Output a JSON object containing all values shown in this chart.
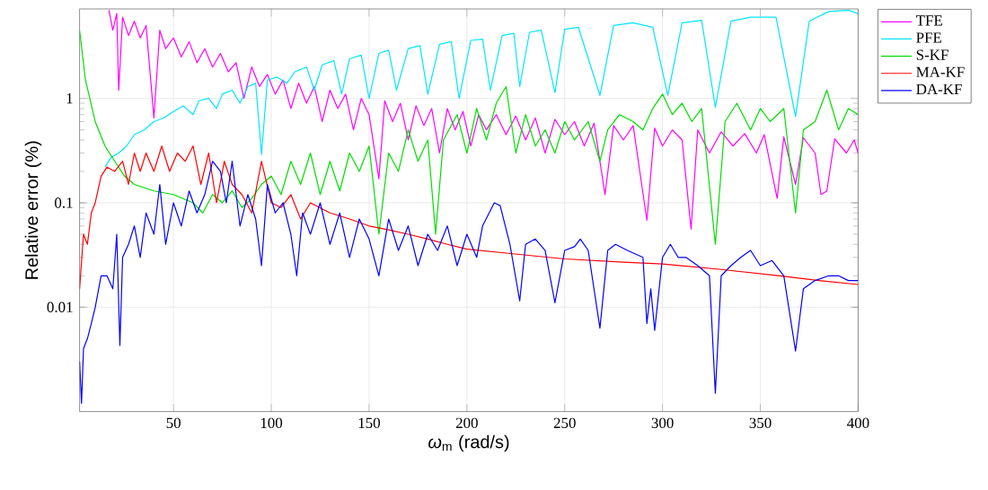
{
  "chart_data": {
    "type": "line",
    "xlabel": "*ω*$_{m}$ (rad/s)",
    "ylabel": "Relative error (%)",
    "xlim": [
      2,
      400
    ],
    "ylim": [
      0.001,
      7.2
    ],
    "xticks": [
      50,
      100,
      150,
      200,
      250,
      300,
      350,
      400
    ],
    "yticks": [
      0.01,
      0.1,
      1
    ],
    "log": "y",
    "grid": true,
    "legend": "right",
    "marker": "none",
    "line_style": "solid",
    "series": [
      {
        "name": "TFE",
        "color": "#ff00ff",
        "x": [
          17,
          19,
          21,
          22,
          24,
          27,
          30,
          33,
          36,
          40,
          43,
          46,
          50,
          54,
          58,
          62,
          66,
          70,
          74,
          78,
          82,
          86,
          90,
          94,
          98,
          102,
          106,
          110,
          114,
          118,
          122,
          126,
          130,
          134,
          138,
          142,
          146,
          150,
          155,
          158,
          162,
          166,
          170,
          174,
          178,
          182,
          186,
          190,
          194,
          198,
          202,
          206,
          210,
          215,
          220,
          225,
          230,
          235,
          240,
          245,
          250,
          255,
          260,
          265,
          270.6,
          275,
          280,
          285,
          292,
          296,
          300,
          305,
          310,
          314.6,
          318,
          324,
          330,
          336,
          342,
          348,
          352,
          358.6,
          362,
          368,
          372,
          378,
          381,
          384,
          388,
          394,
          398,
          400
        ],
        "values": [
          7.0,
          4.5,
          6.5,
          1.2,
          6.0,
          4.0,
          5.5,
          3.8,
          5.0,
          0.65,
          4.5,
          3.0,
          3.8,
          2.5,
          3.5,
          2.2,
          3.0,
          2.0,
          2.7,
          1.8,
          2.2,
          1.0,
          2.0,
          1.3,
          1.7,
          1.1,
          1.5,
          0.8,
          1.4,
          0.9,
          1.3,
          0.6,
          1.2,
          0.8,
          1.1,
          0.5,
          1.0,
          0.7,
          0.17,
          0.95,
          0.6,
          0.9,
          0.4,
          0.85,
          0.55,
          0.8,
          0.3,
          0.8,
          0.5,
          0.75,
          0.35,
          0.7,
          0.5,
          0.7,
          0.45,
          0.68,
          0.4,
          0.65,
          0.3,
          0.63,
          0.45,
          0.6,
          0.35,
          0.58,
          0.12,
          0.55,
          0.4,
          0.55,
          0.068,
          0.52,
          0.35,
          0.5,
          0.4,
          0.056,
          0.5,
          0.3,
          0.48,
          0.35,
          0.46,
          0.3,
          0.45,
          0.11,
          0.43,
          0.15,
          0.42,
          0.3,
          0.12,
          0.13,
          0.41,
          0.3,
          0.4,
          0.3
        ]
      },
      {
        "name": "PFE",
        "color": "#00e5ff",
        "x": [
          15,
          18,
          22,
          26,
          30,
          35,
          40,
          45,
          50,
          55,
          60,
          63,
          68,
          72,
          75,
          80,
          84,
          88,
          92,
          95,
          98,
          103,
          108,
          112,
          118,
          122,
          126,
          132,
          136,
          140,
          146,
          150,
          155,
          160,
          164,
          170,
          176,
          180,
          186,
          192,
          196,
          202,
          208,
          212,
          218,
          224,
          227,
          232,
          238,
          245,
          250,
          257,
          268,
          275,
          285,
          295,
          302.7,
          310,
          320,
          327,
          335,
          345,
          358,
          368,
          375,
          385,
          395,
          400
        ],
        "values": [
          0.22,
          0.27,
          0.3,
          0.35,
          0.45,
          0.5,
          0.6,
          0.65,
          0.75,
          0.85,
          0.7,
          0.95,
          1.0,
          0.8,
          1.1,
          1.2,
          0.9,
          1.3,
          1.4,
          0.29,
          1.5,
          1.6,
          1.4,
          1.8,
          2.0,
          1.2,
          2.1,
          2.3,
          1.1,
          2.4,
          2.6,
          1.0,
          2.7,
          2.9,
          1.2,
          3.0,
          3.2,
          1.1,
          3.3,
          3.5,
          1.0,
          3.6,
          3.7,
          1.2,
          4.0,
          4.2,
          1.3,
          4.3,
          4.5,
          1.14,
          4.6,
          4.8,
          1.07,
          5.0,
          5.3,
          4.8,
          1.07,
          5.3,
          5.6,
          0.82,
          5.5,
          6.0,
          6.0,
          0.67,
          5.5,
          6.8,
          7.0,
          6.5
        ]
      },
      {
        "name": "S-KF",
        "color": "#00dd00",
        "x": [
          2,
          5,
          10,
          15,
          20,
          25,
          30,
          40,
          50,
          60,
          65,
          70,
          75,
          80,
          85,
          90,
          95,
          100,
          105,
          110,
          115,
          120,
          125,
          130,
          135,
          140,
          145,
          150,
          155,
          160,
          165,
          170,
          175,
          180,
          184,
          188,
          195,
          200,
          205,
          210,
          215,
          220,
          225,
          230,
          235,
          240,
          245,
          250,
          255,
          262,
          268,
          272,
          278,
          285,
          290,
          295,
          300,
          305,
          310,
          315,
          320,
          327,
          332,
          338,
          345,
          350,
          355,
          362,
          368,
          372,
          378,
          384,
          390,
          395,
          400
        ],
        "values": [
          4.5,
          1.5,
          0.6,
          0.35,
          0.25,
          0.18,
          0.15,
          0.13,
          0.12,
          0.1,
          0.08,
          0.12,
          0.1,
          0.13,
          0.09,
          0.11,
          0.15,
          0.18,
          0.12,
          0.25,
          0.15,
          0.3,
          0.12,
          0.25,
          0.13,
          0.3,
          0.2,
          0.35,
          0.05,
          0.3,
          0.2,
          0.5,
          0.25,
          0.4,
          0.05,
          0.4,
          0.7,
          0.3,
          0.8,
          0.4,
          0.9,
          1.3,
          0.3,
          0.7,
          0.35,
          0.5,
          0.3,
          0.6,
          0.4,
          0.6,
          0.25,
          0.5,
          0.7,
          0.6,
          0.5,
          0.8,
          1.1,
          0.7,
          0.9,
          0.6,
          0.8,
          0.04,
          0.6,
          0.9,
          0.5,
          0.8,
          0.6,
          0.8,
          0.08,
          0.5,
          0.6,
          1.2,
          0.5,
          0.8,
          0.7
        ]
      },
      {
        "name": "MA-KF",
        "color": "#ff0000",
        "x": [
          2,
          4,
          6,
          8,
          10,
          13,
          16,
          20,
          24,
          27,
          30,
          33,
          36,
          40,
          44,
          48,
          52,
          56,
          60,
          64,
          68,
          72,
          76,
          80,
          85,
          90,
          95,
          100,
          105,
          110,
          115,
          120,
          130,
          140,
          150,
          160,
          170,
          180,
          190,
          200,
          220,
          250,
          280,
          300,
          330,
          360,
          380,
          400
        ],
        "values": [
          0.015,
          0.05,
          0.04,
          0.08,
          0.1,
          0.18,
          0.22,
          0.2,
          0.25,
          0.15,
          0.3,
          0.2,
          0.3,
          0.2,
          0.35,
          0.2,
          0.3,
          0.25,
          0.35,
          0.15,
          0.3,
          0.1,
          0.25,
          0.15,
          0.12,
          0.08,
          0.25,
          0.1,
          0.09,
          0.12,
          0.07,
          0.1,
          0.08,
          0.07,
          0.06,
          0.055,
          0.05,
          0.045,
          0.04,
          0.036,
          0.033,
          0.029,
          0.027,
          0.026,
          0.023,
          0.02,
          0.018,
          0.0165
        ]
      },
      {
        "name": "DA-KF",
        "color": "#0000ff",
        "x": [
          2,
          3,
          4,
          6,
          8,
          10,
          13,
          16,
          19,
          21,
          22.6,
          24,
          27,
          30,
          33,
          36,
          40,
          43,
          46,
          50,
          54,
          58,
          62,
          66,
          70,
          74,
          77,
          80,
          84,
          88,
          92,
          95,
          98,
          102,
          106,
          110,
          113,
          116,
          120,
          125,
          130,
          135,
          140,
          145,
          150,
          155,
          160,
          165,
          170,
          175,
          180,
          185,
          190,
          195,
          200,
          205,
          208,
          214,
          217,
          222,
          227,
          230,
          235,
          240,
          245,
          250,
          255,
          258,
          262,
          268,
          272,
          276,
          282,
          290,
          292,
          294,
          296,
          300,
          304,
          308,
          312,
          318,
          324,
          327,
          330,
          335,
          340,
          345,
          350,
          356,
          362,
          368,
          372,
          378,
          385,
          390,
          395,
          400
        ],
        "values": [
          0.003,
          0.0012,
          0.004,
          0.005,
          0.007,
          0.01,
          0.02,
          0.02,
          0.015,
          0.05,
          0.0043,
          0.03,
          0.04,
          0.06,
          0.03,
          0.08,
          0.05,
          0.15,
          0.04,
          0.1,
          0.06,
          0.13,
          0.08,
          0.12,
          0.25,
          0.2,
          0.1,
          0.25,
          0.06,
          0.12,
          0.07,
          0.025,
          0.15,
          0.08,
          0.1,
          0.05,
          0.02,
          0.08,
          0.05,
          0.1,
          0.04,
          0.08,
          0.03,
          0.07,
          0.045,
          0.02,
          0.07,
          0.035,
          0.06,
          0.025,
          0.05,
          0.035,
          0.06,
          0.025,
          0.05,
          0.03,
          0.06,
          0.1,
          0.094,
          0.04,
          0.0115,
          0.04,
          0.045,
          0.035,
          0.011,
          0.035,
          0.038,
          0.045,
          0.035,
          0.0063,
          0.035,
          0.04,
          0.035,
          0.03,
          0.007,
          0.015,
          0.006,
          0.03,
          0.04,
          0.03,
          0.03,
          0.025,
          0.02,
          0.0015,
          0.02,
          0.025,
          0.03,
          0.035,
          0.025,
          0.028,
          0.02,
          0.0038,
          0.015,
          0.018,
          0.02,
          0.02,
          0.018,
          0.018
        ]
      }
    ]
  }
}
